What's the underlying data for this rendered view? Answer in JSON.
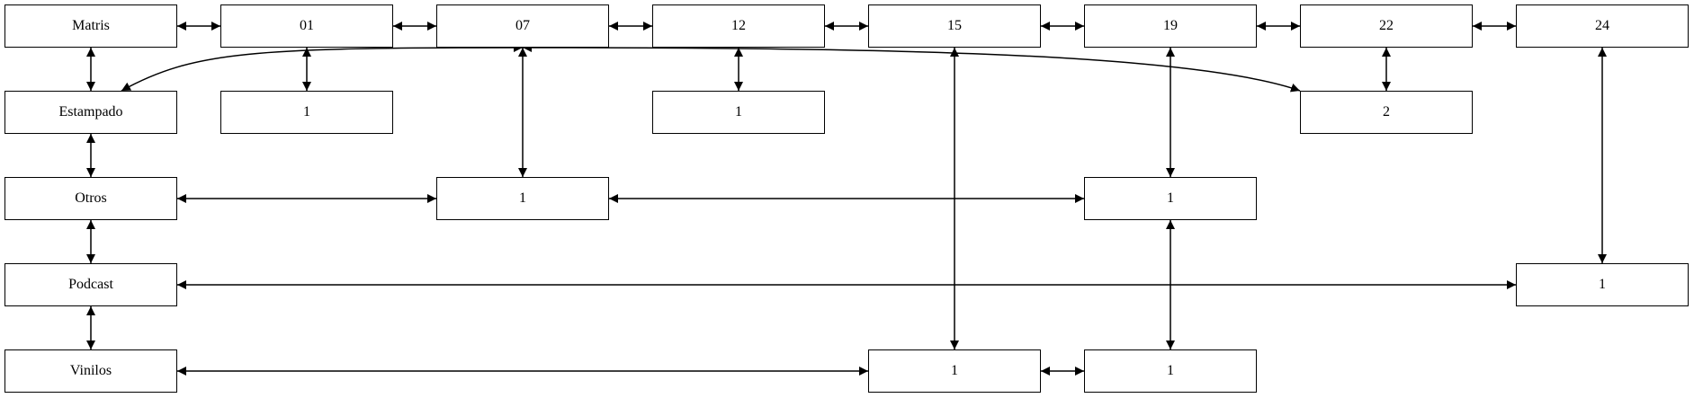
{
  "nodes": {
    "matris": "Matris",
    "n01": "01",
    "n07": "07",
    "n12": "12",
    "n15": "15",
    "n19": "19",
    "n22": "22",
    "n24": "24",
    "estampado": "Estampado",
    "est01": "1",
    "est12": "1",
    "est22": "2",
    "otros": "Otros",
    "otros07": "1",
    "otros19": "1",
    "podcast": "Podcast",
    "podcast24": "1",
    "vinilos": "Vinilos",
    "vin15": "1",
    "vin19": "1"
  },
  "edges": [
    [
      "matris",
      "n01"
    ],
    [
      "n01",
      "n07"
    ],
    [
      "n07",
      "n12"
    ],
    [
      "n12",
      "n15"
    ],
    [
      "n15",
      "n19"
    ],
    [
      "n19",
      "n22"
    ],
    [
      "n22",
      "n24"
    ],
    [
      "matris",
      "estampado"
    ],
    [
      "estampado",
      "otros"
    ],
    [
      "otros",
      "podcast"
    ],
    [
      "podcast",
      "vinilos"
    ],
    [
      "n01",
      "est01"
    ],
    [
      "n12",
      "est12"
    ],
    [
      "n22",
      "est22"
    ],
    [
      "n07",
      "otros07"
    ],
    [
      "n19",
      "otros19"
    ],
    [
      "n24",
      "podcast24"
    ],
    [
      "n15",
      "vin15"
    ],
    [
      "otros19",
      "vin19"
    ],
    [
      "otros",
      "otros07"
    ],
    [
      "otros07",
      "otros19"
    ],
    [
      "podcast",
      "podcast24"
    ],
    [
      "vinilos",
      "vin15"
    ],
    [
      "vin15",
      "vin19"
    ],
    [
      "n07",
      "estampado"
    ],
    [
      "n07",
      "est22"
    ]
  ],
  "colors": {
    "stroke": "#000000",
    "fill": "#ffffff"
  }
}
